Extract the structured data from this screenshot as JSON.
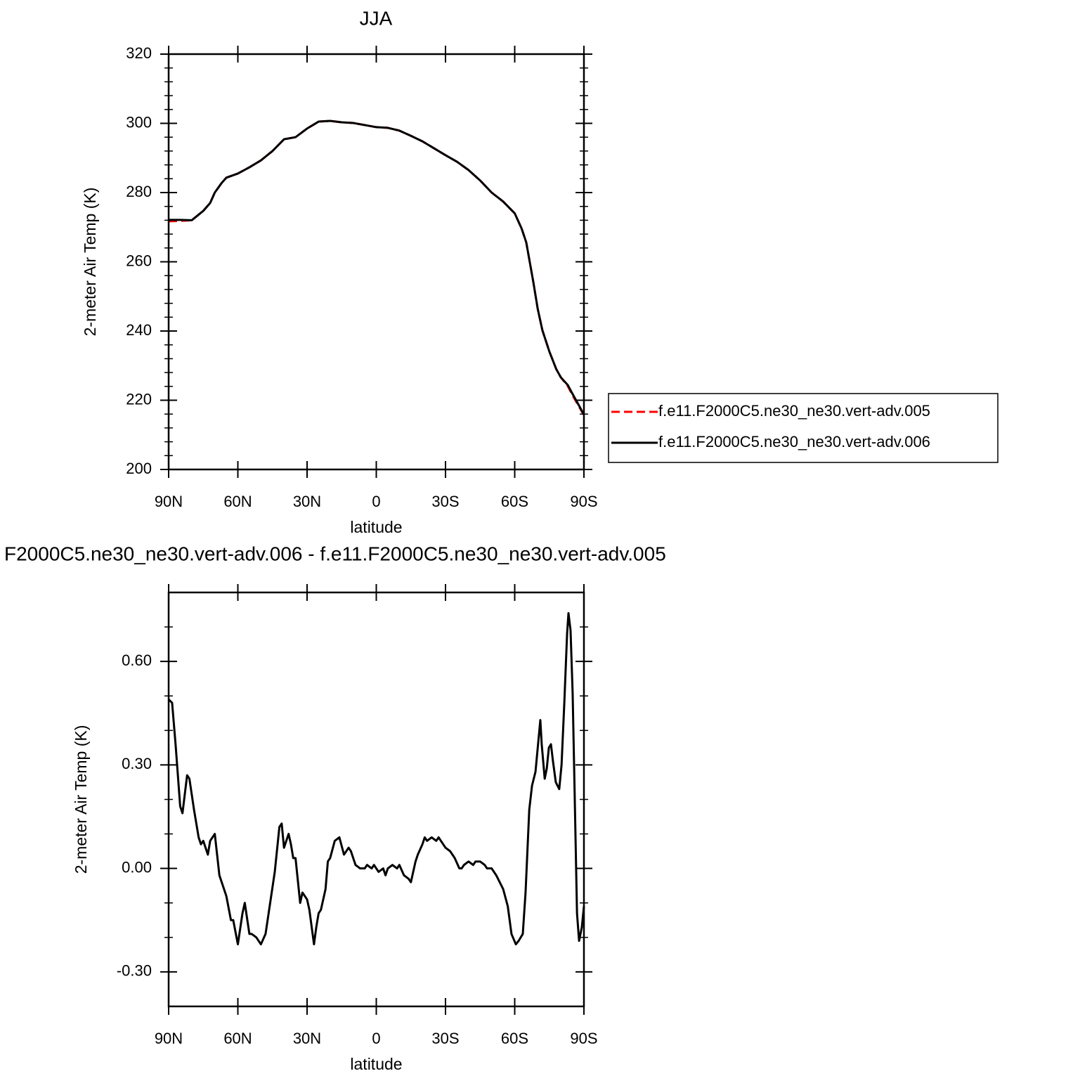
{
  "chart_data": [
    {
      "type": "line",
      "title": "JJA",
      "xlabel": "latitude",
      "ylabel": "2-meter Air Temp (K)",
      "x": [
        90,
        85,
        80,
        75,
        72,
        70,
        67,
        65,
        60,
        55,
        50,
        45,
        40,
        35,
        30,
        25,
        20,
        15,
        10,
        5,
        0,
        -5,
        -10,
        -15,
        -20,
        -25,
        -30,
        -35,
        -40,
        -45,
        -50,
        -55,
        -60,
        -63,
        -65,
        -68,
        -70,
        -72,
        -75,
        -78,
        -80,
        -83,
        -85,
        -88,
        -90
      ],
      "series": [
        {
          "name": "f.e11.F2000C5.ne30_ne30.vert-adv.005",
          "color": "#ff0000",
          "dashed": true,
          "values": [
            271.7,
            271.8,
            272.0,
            274.7,
            277.0,
            280.0,
            282.8,
            284.3,
            285.5,
            287.3,
            289.3,
            292.0,
            295.4,
            296.0,
            298.5,
            300.5,
            300.7,
            300.3,
            300.1,
            299.5,
            298.9,
            298.7,
            297.9,
            296.4,
            294.8,
            292.8,
            290.8,
            288.9,
            286.5,
            283.5,
            280.0,
            277.4,
            274.0,
            269.6,
            265.6,
            254.4,
            246.3,
            240.2,
            234.1,
            229.0,
            226.6,
            224.1,
            221.5,
            218.0,
            215.7
          ]
        },
        {
          "name": "f.e11.F2000C5.ne30_ne30.vert-adv.006",
          "color": "#000000",
          "dashed": false,
          "values": [
            272.1,
            272.1,
            272.0,
            274.7,
            277.0,
            280.0,
            282.8,
            284.3,
            285.5,
            287.3,
            289.3,
            292.0,
            295.4,
            296.0,
            298.5,
            300.5,
            300.7,
            300.3,
            300.1,
            299.5,
            298.9,
            298.7,
            297.9,
            296.4,
            294.8,
            292.8,
            290.8,
            288.9,
            286.5,
            283.5,
            280.0,
            277.4,
            274.0,
            269.6,
            265.6,
            254.4,
            246.3,
            240.2,
            234.1,
            229.0,
            226.6,
            224.4,
            221.9,
            218.3,
            215.8
          ]
        }
      ],
      "xlim": [
        90,
        -90
      ],
      "ylim": [
        200,
        320
      ],
      "xticks": [
        {
          "value": 90,
          "label": "90N"
        },
        {
          "value": 60,
          "label": "60N"
        },
        {
          "value": 30,
          "label": "30N"
        },
        0,
        {
          "value": -30,
          "label": "30S"
        },
        {
          "value": -60,
          "label": "60S"
        },
        {
          "value": -90,
          "label": "90S"
        }
      ],
      "yticks": [
        200,
        220,
        240,
        260,
        280,
        300,
        320
      ],
      "yminorticks": [
        204,
        208,
        212,
        216,
        224,
        228,
        232,
        236,
        244,
        248,
        252,
        256,
        264,
        268,
        272,
        276,
        284,
        288,
        292,
        296,
        304,
        308,
        312,
        316
      ],
      "grid": false,
      "legend": "right"
    },
    {
      "type": "line",
      "title": "F2000C5.ne30_ne30.vert-adv.006 - f.e11.F2000C5.ne30_ne30.vert-adv.005",
      "xlabel": "latitude",
      "ylabel": "2-meter Air Temp (K)",
      "x": [
        90,
        88.5,
        87,
        85,
        84,
        82,
        81,
        79,
        77,
        76,
        75,
        73,
        72,
        70,
        68,
        66,
        65,
        63,
        62,
        60,
        58,
        57,
        55,
        54,
        52,
        50,
        48,
        46,
        44,
        42,
        41,
        40,
        38,
        37,
        36,
        35,
        33,
        32,
        30,
        29,
        27,
        26,
        25,
        24,
        22,
        21,
        20,
        18,
        16,
        14,
        12,
        11,
        9,
        7,
        5,
        4,
        2,
        1,
        -1,
        -3,
        -4,
        -5,
        -7,
        -9,
        -10,
        -12,
        -14,
        -15,
        -17,
        -18,
        -20,
        -21,
        -22,
        -24,
        -26,
        -27,
        -28,
        -30,
        -32,
        -34,
        -36,
        -37,
        -38,
        -40,
        -42,
        -43,
        -45,
        -47,
        -48,
        -50,
        -52,
        -55,
        -57,
        -58.6,
        -60.5,
        -61.7,
        -63.5,
        -64.7,
        -66.3,
        -67.5,
        -69,
        -71.1,
        -71.7,
        -73,
        -73.9,
        -74.8,
        -75.7,
        -76.6,
        -77.8,
        -79.3,
        -80.3,
        -81.5,
        -82.7,
        -83.3,
        -84.2,
        -85.1,
        -86,
        -87,
        -87.9,
        -89.1,
        -90
      ],
      "series": [
        {
          "color": "#000000",
          "dashed": false,
          "values": [
            0.49,
            0.48,
            0.36,
            0.18,
            0.16,
            0.27,
            0.26,
            0.17,
            0.09,
            0.07,
            0.08,
            0.04,
            0.08,
            0.1,
            -0.02,
            -0.06,
            -0.08,
            -0.15,
            -0.15,
            -0.22,
            -0.13,
            -0.1,
            -0.19,
            -0.19,
            -0.2,
            -0.22,
            -0.19,
            -0.1,
            -0.01,
            0.12,
            0.13,
            0.06,
            0.1,
            0.07,
            0.03,
            0.03,
            -0.1,
            -0.07,
            -0.09,
            -0.12,
            -0.22,
            -0.17,
            -0.13,
            -0.12,
            -0.06,
            0.02,
            0.03,
            0.08,
            0.09,
            0.04,
            0.06,
            0.05,
            0.01,
            0.0,
            0.0,
            0.01,
            0.0,
            0.01,
            -0.01,
            0.0,
            -0.02,
            0.0,
            0.01,
            0.0,
            0.01,
            -0.02,
            -0.03,
            -0.04,
            0.02,
            0.04,
            0.07,
            0.09,
            0.08,
            0.09,
            0.08,
            0.09,
            0.08,
            0.06,
            0.05,
            0.03,
            0.0,
            0.0,
            0.01,
            0.02,
            0.01,
            0.02,
            0.02,
            0.01,
            0.0,
            0.0,
            -0.02,
            -0.06,
            -0.11,
            -0.19,
            -0.22,
            -0.21,
            -0.19,
            -0.07,
            0.17,
            0.24,
            0.28,
            0.43,
            0.36,
            0.26,
            0.29,
            0.35,
            0.36,
            0.31,
            0.25,
            0.23,
            0.3,
            0.48,
            0.68,
            0.74,
            0.69,
            0.51,
            0.21,
            -0.13,
            -0.21,
            -0.17,
            -0.11
          ]
        }
      ],
      "xlim": [
        90,
        -90
      ],
      "ylim": [
        -0.4,
        0.8
      ],
      "xticks": [
        {
          "value": 90,
          "label": "90N"
        },
        {
          "value": 60,
          "label": "60N"
        },
        {
          "value": 30,
          "label": "30N"
        },
        0,
        {
          "value": -30,
          "label": "30S"
        },
        {
          "value": -60,
          "label": "60S"
        },
        {
          "value": -90,
          "label": "90S"
        }
      ],
      "yticks": [
        {
          "value": -0.3,
          "label": "-0.30"
        },
        {
          "value": 0,
          "label": "0.00"
        },
        {
          "value": 0.3,
          "label": "0.30"
        },
        {
          "value": 0.6,
          "label": "0.60"
        }
      ],
      "yminorticks": [
        -0.2,
        -0.1,
        0.1,
        0.2,
        0.4,
        0.5,
        0.7
      ],
      "grid": false
    }
  ]
}
